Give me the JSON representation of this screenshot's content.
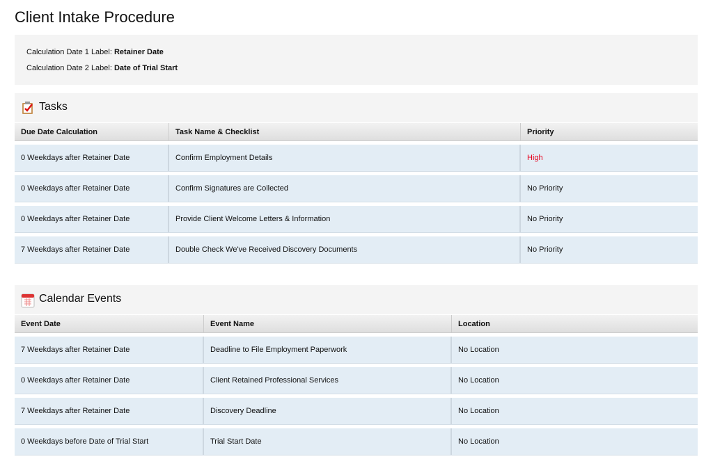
{
  "title": "Client Intake Procedure",
  "info": {
    "date1_label": "Calculation Date 1 Label:",
    "date1_value": "Retainer Date",
    "date2_label": "Calculation Date 2 Label:",
    "date2_value": "Date of Trial Start"
  },
  "tasks": {
    "title": "Tasks",
    "icon": "clipboard-check-icon",
    "headers": [
      "Due Date Calculation",
      "Task Name & Checklist",
      "Priority"
    ],
    "rows": [
      [
        "0 Weekdays after Retainer Date",
        "Confirm Employment Details",
        "High"
      ],
      [
        "0 Weekdays after Retainer Date",
        "Confirm Signatures are Collected",
        "No Priority"
      ],
      [
        "0 Weekdays after Retainer Date",
        "Provide Client Welcome Letters & Information",
        "No Priority"
      ],
      [
        "7 Weekdays after Retainer Date",
        "Double Check We've Received Discovery Documents",
        "No Priority"
      ]
    ]
  },
  "events": {
    "title": "Calendar Events",
    "icon": "calendar-icon",
    "headers": [
      "Event Date",
      "Event Name",
      "Location"
    ],
    "rows": [
      [
        "7 Weekdays after Retainer Date",
        "Deadline to File Employment Paperwork",
        "No Location"
      ],
      [
        "0 Weekdays after Retainer Date",
        "Client Retained Professional Services",
        "No Location"
      ],
      [
        "7 Weekdays after Retainer Date",
        "Discovery Deadline",
        "No Location"
      ],
      [
        "0 Weekdays before Date of Trial Start",
        "Trial Start Date",
        "No Location"
      ]
    ]
  },
  "colors": {
    "high_priority": "#e8001c",
    "row_bg": "#e3edf5"
  }
}
